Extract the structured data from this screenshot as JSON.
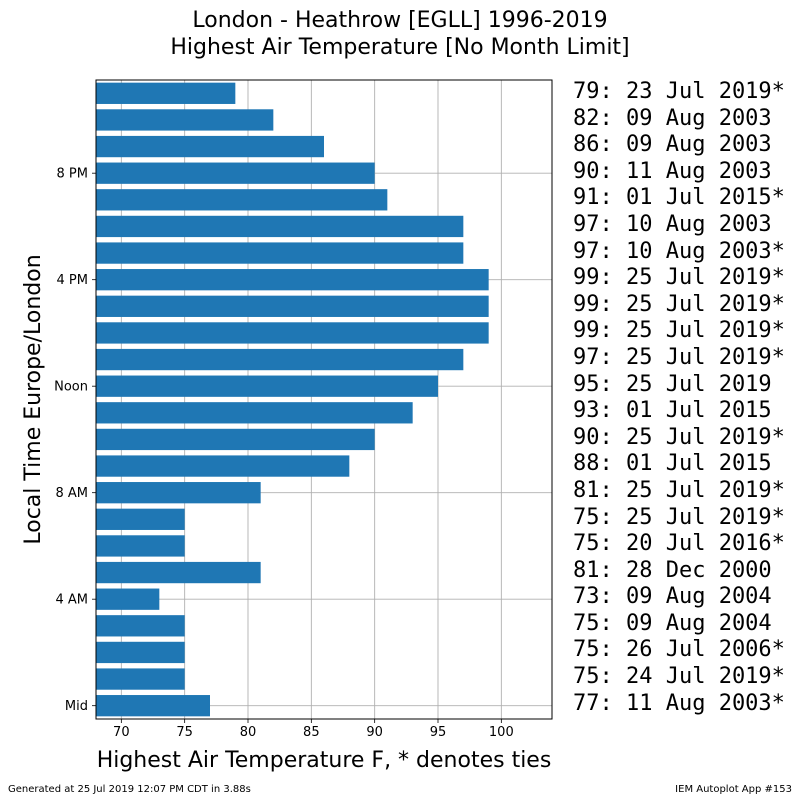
{
  "title": "London - Heathrow [EGLL] 1996-2019",
  "subtitle": "Highest Air Temperature [No Month Limit]",
  "footer_left": "Generated at 25 Jul 2019 12:07 PM CDT in 3.88s",
  "footer_right": "IEM Autoplot App #153",
  "colors": {
    "bar": "#1f77b4",
    "grid": "#b0b0b0"
  },
  "chart_data": {
    "type": "bar",
    "orientation": "horizontal",
    "xlabel": "Highest Air Temperature F, * denotes ties",
    "ylabel": "Local Time Europe/London",
    "xlim": [
      68,
      104
    ],
    "xticks": [
      70,
      75,
      80,
      85,
      90,
      95,
      100
    ],
    "ytick_labels": [
      {
        "hour": 0,
        "label": "Mid"
      },
      {
        "hour": 4,
        "label": "4 AM"
      },
      {
        "hour": 8,
        "label": "8 AM"
      },
      {
        "hour": 12,
        "label": "Noon"
      },
      {
        "hour": 16,
        "label": "4 PM"
      },
      {
        "hour": 20,
        "label": "8 PM"
      }
    ],
    "grid": true,
    "hours": [
      0,
      1,
      2,
      3,
      4,
      5,
      6,
      7,
      8,
      9,
      10,
      11,
      12,
      13,
      14,
      15,
      16,
      17,
      18,
      19,
      20,
      21,
      22,
      23
    ],
    "values": [
      77,
      75,
      75,
      75,
      73,
      81,
      75,
      75,
      81,
      88,
      90,
      93,
      95,
      97,
      99,
      99,
      99,
      97,
      97,
      91,
      90,
      86,
      82,
      79
    ],
    "annotations": [
      "79: 23 Jul 2019*",
      "82: 09 Aug 2003",
      "86: 09 Aug 2003",
      "90: 11 Aug 2003",
      "91: 01 Jul 2015*",
      "97: 10 Aug 2003",
      "97: 10 Aug 2003*",
      "99: 25 Jul 2019*",
      "99: 25 Jul 2019*",
      "99: 25 Jul 2019*",
      "97: 25 Jul 2019*",
      "95: 25 Jul 2019",
      "93: 01 Jul 2015",
      "90: 25 Jul 2019*",
      "88: 01 Jul 2015",
      "81: 25 Jul 2019*",
      "75: 25 Jul 2019*",
      "75: 20 Jul 2016*",
      "81: 28 Dec 2000",
      "73: 09 Aug 2004",
      "75: 09 Aug 2004",
      "75: 26 Jul 2006*",
      "75: 24 Jul 2019*",
      "77: 11 Aug 2003*"
    ]
  }
}
